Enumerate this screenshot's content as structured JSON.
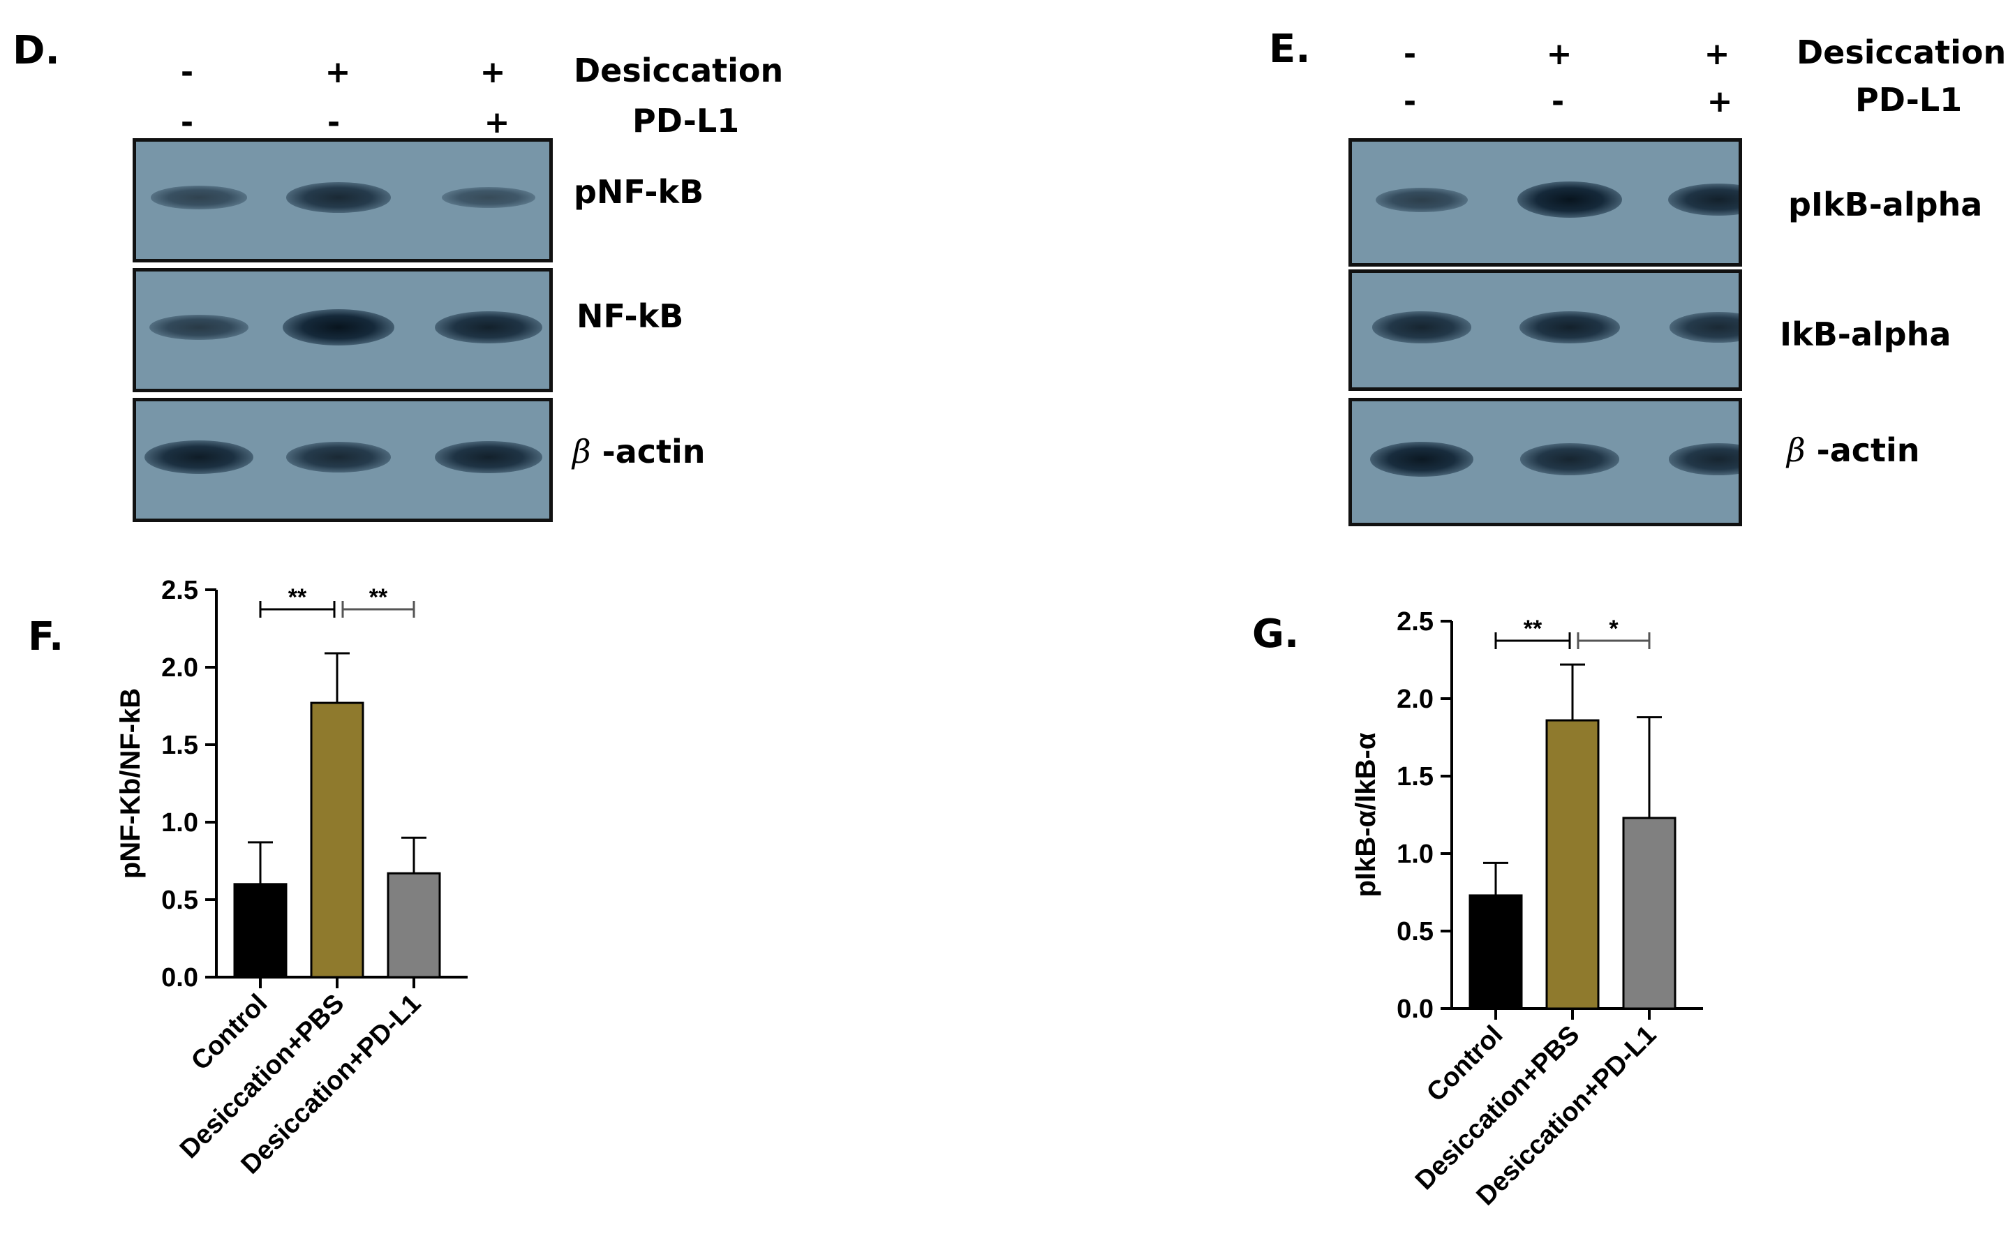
{
  "panels": {
    "D": {
      "letter": "D.",
      "row1_signs": [
        "-",
        "+",
        "+"
      ],
      "row2_signs": [
        "-",
        "-",
        "+"
      ],
      "row1_label": "Desiccation",
      "row2_label": "PD-L1",
      "blots": [
        {
          "label": "pNF-kB",
          "intensity": [
            0.45,
            0.75,
            0.35
          ]
        },
        {
          "label": "NF-kB",
          "intensity": [
            0.55,
            1.0,
            0.85
          ]
        },
        {
          "label": "-actin",
          "greek": "β",
          "intensity": [
            0.9,
            0.75,
            0.85
          ]
        }
      ]
    },
    "E": {
      "letter": "E.",
      "row1_signs": [
        "-",
        "+",
        "+"
      ],
      "row2_signs": [
        "-",
        "-",
        "+"
      ],
      "row1_label": "Desiccation",
      "row2_label": "PD-L1",
      "blots": [
        {
          "label": "pIkB-alpha",
          "intensity": [
            0.5,
            1.0,
            0.85
          ]
        },
        {
          "label": "IkB-alpha",
          "intensity": [
            0.8,
            0.85,
            0.75
          ]
        },
        {
          "label": "-actin",
          "greek": "β",
          "intensity": [
            0.95,
            0.8,
            0.8
          ]
        }
      ]
    },
    "F": {
      "letter": "F."
    },
    "G": {
      "letter": "G."
    }
  },
  "chart_data": [
    {
      "type": "bar",
      "panel": "F",
      "categories": [
        "Control",
        "Desiccation+PBS",
        "Desiccation+PD-L1"
      ],
      "values": [
        0.6,
        1.77,
        0.67
      ],
      "errors": [
        0.27,
        0.32,
        0.23
      ],
      "colors": [
        "#000000",
        "#8f7a2d",
        "#808080"
      ],
      "ylabel": "pNF-Kb/NF-kB",
      "ylim": [
        0,
        2.5
      ],
      "yticks": [
        "0.0",
        "0.5",
        "1.0",
        "1.5",
        "2.0",
        "2.5"
      ],
      "significance": [
        {
          "from": 0,
          "to": 1,
          "label": "**"
        },
        {
          "from": 1,
          "to": 2,
          "label": "**"
        }
      ]
    },
    {
      "type": "bar",
      "panel": "G",
      "categories": [
        "Control",
        "Desiccation+PBS",
        "Desiccation+PD-L1"
      ],
      "values": [
        0.73,
        1.86,
        1.23
      ],
      "errors": [
        0.21,
        0.36,
        0.65
      ],
      "colors": [
        "#000000",
        "#8f7a2d",
        "#808080"
      ],
      "ylabel": "pIkB-α/IkB-α",
      "ylim": [
        0,
        2.5
      ],
      "yticks": [
        "0.0",
        "0.5",
        "1.0",
        "1.5",
        "2.0",
        "2.5"
      ],
      "significance": [
        {
          "from": 0,
          "to": 1,
          "label": "**"
        },
        {
          "from": 1,
          "to": 2,
          "label": "*"
        }
      ]
    }
  ]
}
